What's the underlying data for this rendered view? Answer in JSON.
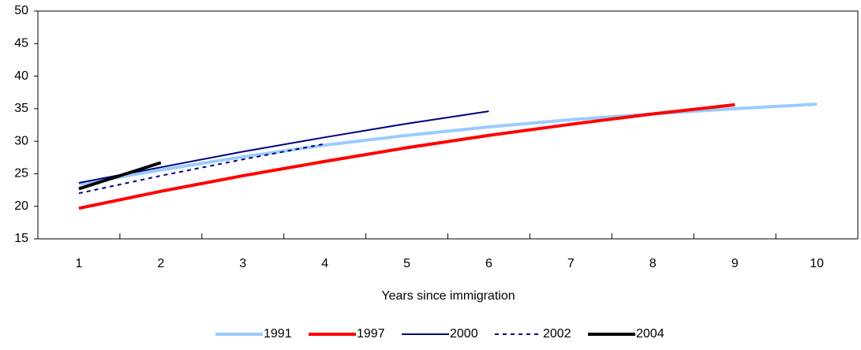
{
  "chart_data": {
    "type": "line",
    "x_label": "Years since immigration",
    "categories": [
      "1",
      "2",
      "3",
      "4",
      "5",
      "6",
      "7",
      "8",
      "9",
      "10"
    ],
    "series": [
      {
        "name": "1991",
        "color": "#99ccff",
        "width": 4,
        "dash": false,
        "values": [
          23.4,
          25.6,
          27.6,
          29.4,
          30.9,
          32.2,
          33.3,
          34.2,
          35.0,
          35.7
        ]
      },
      {
        "name": "1997",
        "color": "#ff0000",
        "width": 4,
        "dash": false,
        "values": [
          19.7,
          22.3,
          24.7,
          26.9,
          29.0,
          30.9,
          32.6,
          34.2,
          35.6,
          null
        ]
      },
      {
        "name": "2000",
        "color": "#000080",
        "width": 2,
        "dash": false,
        "values": [
          23.6,
          26.0,
          28.4,
          30.6,
          32.7,
          34.6,
          null,
          null,
          null,
          null
        ]
      },
      {
        "name": "2002",
        "color": "#000080",
        "width": 2,
        "dash": true,
        "values": [
          22.0,
          24.7,
          27.2,
          29.6,
          null,
          null,
          null,
          null,
          null,
          null
        ]
      },
      {
        "name": "2004",
        "color": "#000000",
        "width": 4,
        "dash": false,
        "values": [
          22.7,
          26.7,
          null,
          null,
          null,
          null,
          null,
          null,
          null,
          null
        ]
      }
    ],
    "ylim": [
      15,
      50
    ],
    "yticks": [
      15,
      20,
      25,
      30,
      35,
      40,
      45,
      50
    ],
    "grid": false
  }
}
